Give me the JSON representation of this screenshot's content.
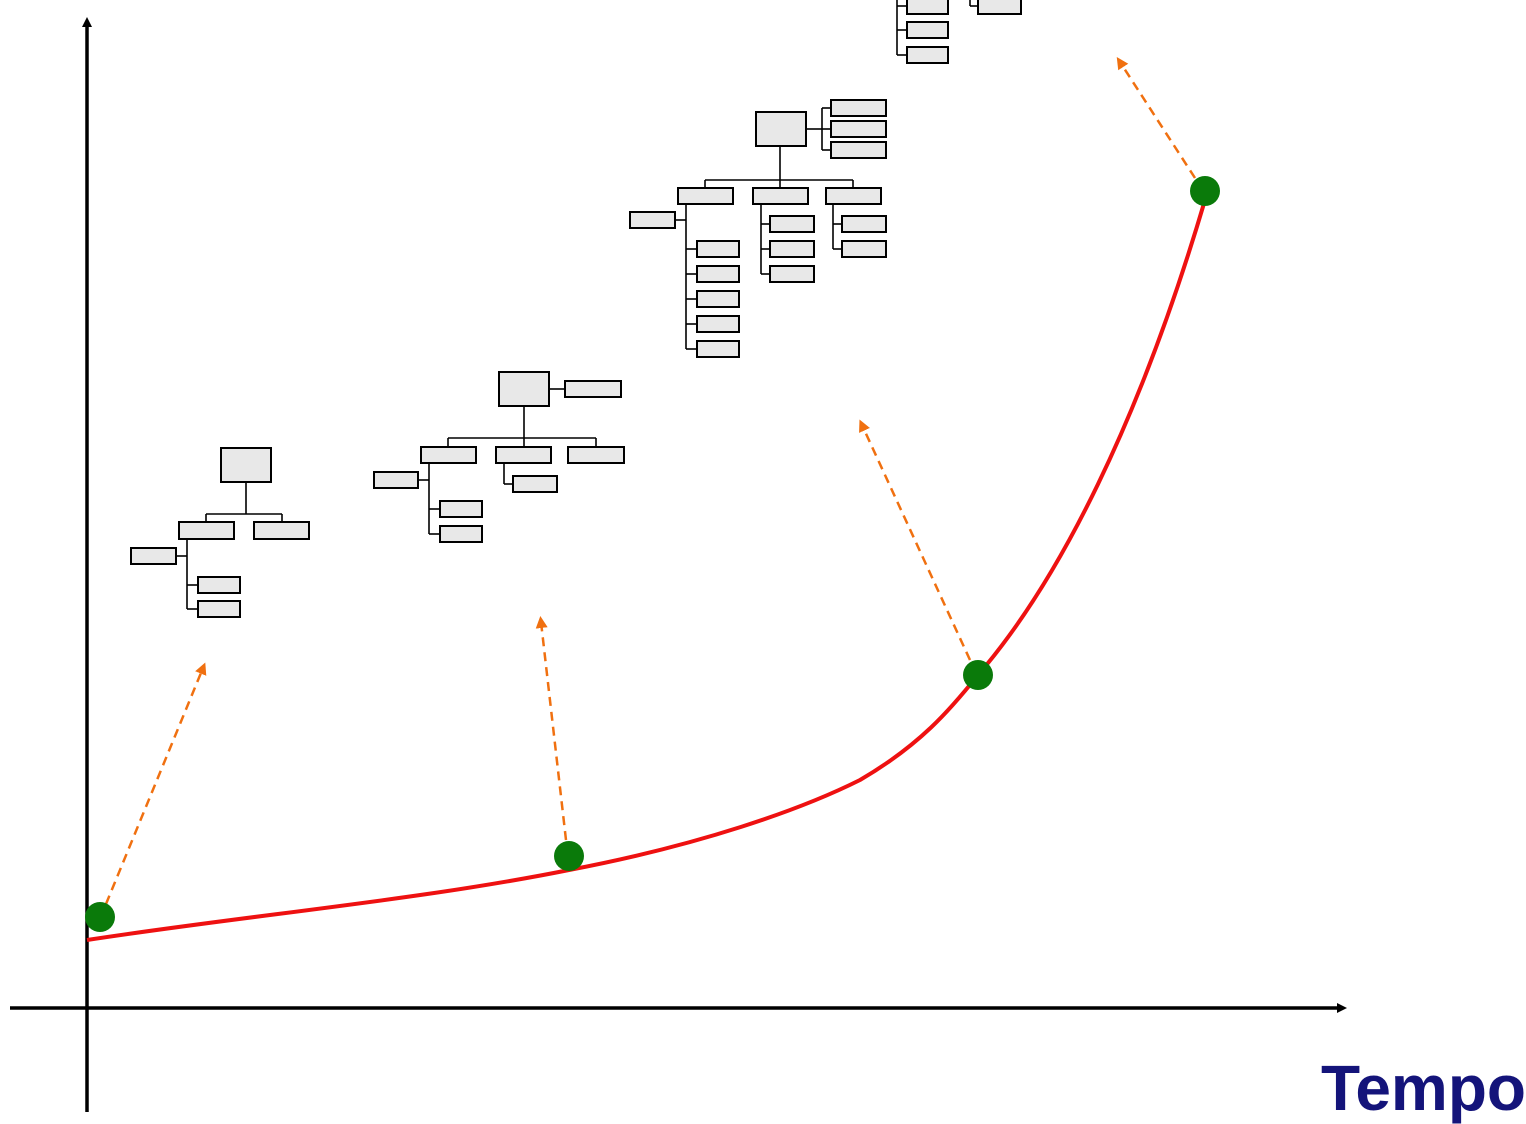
{
  "xaxis": {
    "label": "Tempo"
  },
  "colors": {
    "curve": "#ee1111",
    "point": "#0a7a0a",
    "pointer": "#f07010",
    "axis": "#000000",
    "label": "#14147a",
    "box_fill": "#e8e8e8"
  },
  "stages": [
    {
      "name": "stage-1",
      "pointer_style": "dashed-arrow"
    },
    {
      "name": "stage-2",
      "pointer_style": "dashed-arrow"
    },
    {
      "name": "stage-3",
      "pointer_style": "dashed-arrow"
    },
    {
      "name": "stage-4",
      "pointer_style": "dashed-arrow"
    }
  ]
}
